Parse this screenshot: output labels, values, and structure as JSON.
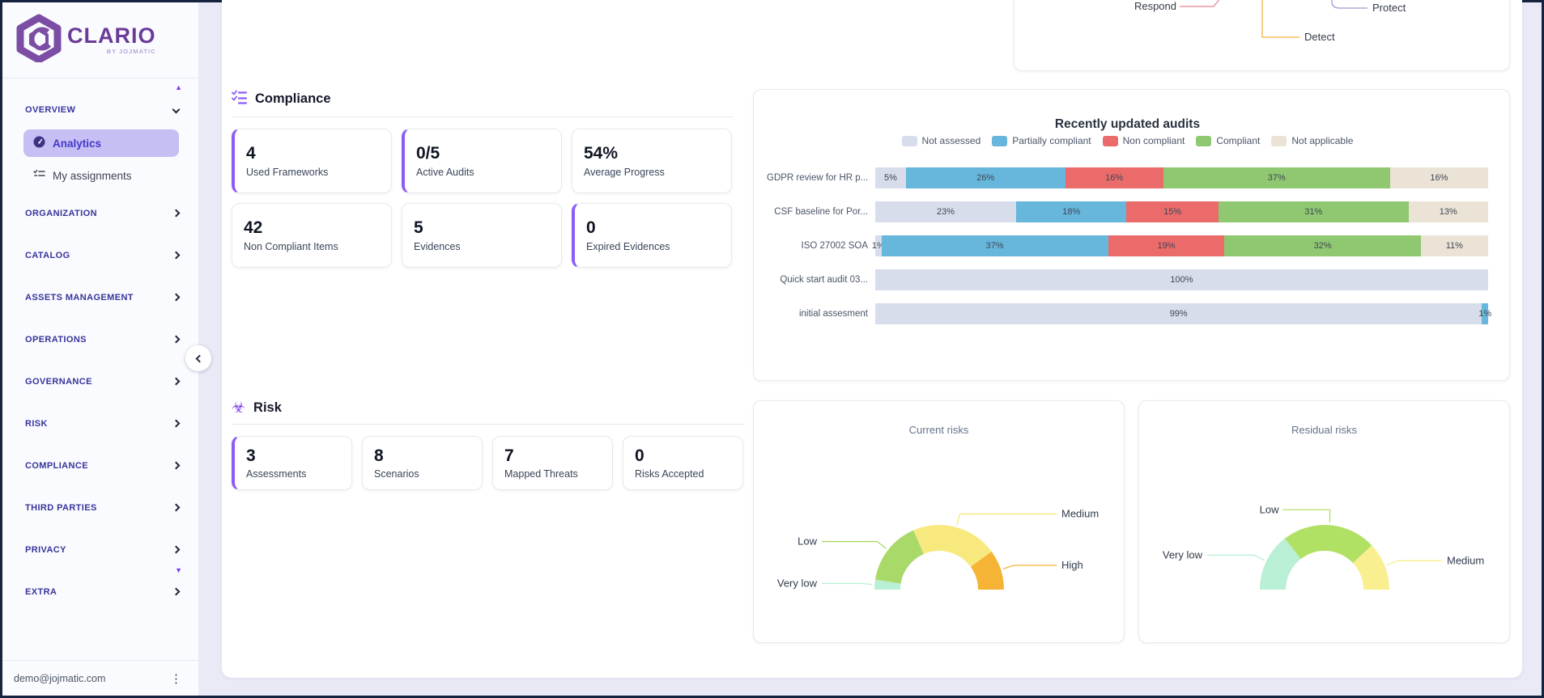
{
  "window": {
    "accent": "#8b5cf6",
    "border_color": "#16233f",
    "background": "#e9eaf6"
  },
  "sidebar": {
    "logo": {
      "brand": "CLARIO",
      "byline": "BY JOJMATIC"
    },
    "sections": [
      {
        "label": "OVERVIEW",
        "expanded": true,
        "children": [
          {
            "label": "Analytics",
            "icon": "gauge-icon",
            "active": true
          },
          {
            "label": "My assignments",
            "icon": "checklist-icon",
            "active": false
          }
        ]
      },
      {
        "label": "ORGANIZATION"
      },
      {
        "label": "CATALOG"
      },
      {
        "label": "ASSETS MANAGEMENT"
      },
      {
        "label": "OPERATIONS"
      },
      {
        "label": "GOVERNANCE"
      },
      {
        "label": "RISK"
      },
      {
        "label": "COMPLIANCE"
      },
      {
        "label": "THIRD PARTIES"
      },
      {
        "label": "PRIVACY"
      },
      {
        "label": "EXTRA"
      }
    ],
    "scroll_up_icon": "▲",
    "scroll_down_icon": "▼",
    "footer": {
      "email": "demo@jojmatic.com",
      "kebab_icon": "⋮"
    }
  },
  "top_chart": {
    "labels": [
      {
        "text": "Respond",
        "color": "#e89aa4"
      },
      {
        "text": "Protect",
        "color": "#b3a6d6"
      },
      {
        "text": "Detect",
        "color": "#f3bd61"
      }
    ]
  },
  "compliance": {
    "title": "Compliance",
    "cards": [
      {
        "value": "4",
        "label": "Used Frameworks",
        "accent": true
      },
      {
        "value": "0/5",
        "label": "Active Audits",
        "accent": true
      },
      {
        "value": "54%",
        "label": "Average Progress",
        "accent": false
      },
      {
        "value": "42",
        "label": "Non Compliant Items",
        "accent": false
      },
      {
        "value": "5",
        "label": "Evidences",
        "accent": false
      },
      {
        "value": "0",
        "label": "Expired Evidences",
        "accent": true
      }
    ]
  },
  "risk": {
    "title": "Risk",
    "cards": [
      {
        "value": "3",
        "label": "Assessments",
        "accent": true
      },
      {
        "value": "8",
        "label": "Scenarios",
        "accent": false
      },
      {
        "value": "7",
        "label": "Mapped Threats",
        "accent": false
      },
      {
        "value": "0",
        "label": "Risks Accepted",
        "accent": false
      }
    ]
  },
  "chart_data": [
    {
      "type": "bar",
      "title": "Recently updated audits",
      "orientation": "horizontal",
      "stacked": true,
      "unit": "%",
      "xlim": [
        0,
        100
      ],
      "legend_position": "top",
      "categories": [
        "GDPR review for HR p...",
        "CSF baseline for Por...",
        "ISO 27002 SOA",
        "Quick start audit 03...",
        "initial assesment"
      ],
      "series": [
        {
          "name": "Not assessed",
          "color": "#d7ddea",
          "values": [
            5,
            23,
            1,
            100,
            99
          ]
        },
        {
          "name": "Partially compliant",
          "color": "#67b6db",
          "values": [
            26,
            18,
            37,
            0,
            1
          ]
        },
        {
          "name": "Non compliant",
          "color": "#eb6b6b",
          "values": [
            16,
            15,
            19,
            0,
            0
          ]
        },
        {
          "name": "Compliant",
          "color": "#8fc871",
          "values": [
            37,
            31,
            32,
            0,
            0
          ]
        },
        {
          "name": "Not applicable",
          "color": "#ebe3d6",
          "values": [
            16,
            13,
            11,
            0,
            0
          ]
        }
      ]
    },
    {
      "type": "pie",
      "shape": "half-donut",
      "title": "Current risks",
      "segments": [
        {
          "name": "Very low",
          "value": 5,
          "color": "#b9efd4"
        },
        {
          "name": "Low",
          "value": 32,
          "color": "#a9da69"
        },
        {
          "name": "Medium",
          "value": 43,
          "color": "#f8e97e"
        },
        {
          "name": "High",
          "value": 20,
          "color": "#f5b435"
        }
      ]
    },
    {
      "type": "pie",
      "shape": "half-donut",
      "title": "Residual risks",
      "segments": [
        {
          "name": "Very low",
          "value": 29,
          "color": "#b9efd4"
        },
        {
          "name": "Low",
          "value": 47,
          "color": "#b1e164"
        },
        {
          "name": "Medium",
          "value": 24,
          "color": "#f9ef90"
        }
      ]
    }
  ]
}
